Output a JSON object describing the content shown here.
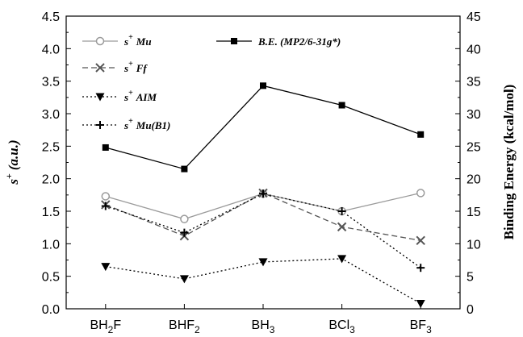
{
  "chart_data": {
    "type": "line",
    "categories": [
      {
        "base": "BH",
        "sub": "2",
        "tail": "F"
      },
      {
        "base": "BHF",
        "sub": "2",
        "tail": ""
      },
      {
        "base": "BH",
        "sub": "3",
        "tail": ""
      },
      {
        "base": "BCl",
        "sub": "3",
        "tail": ""
      },
      {
        "base": "BF",
        "sub": "3",
        "tail": ""
      }
    ],
    "y_left": {
      "label_main": "s",
      "label_sup": "+",
      "label_unit": "(a.u.)",
      "lim": [
        0.0,
        4.5
      ],
      "ticks": [
        "0.0",
        "0.5",
        "1.0",
        "1.5",
        "2.0",
        "2.5",
        "3.0",
        "3.5",
        "4.0",
        "4.5"
      ]
    },
    "y_right": {
      "label": "Binding Energy (kcal/mol)",
      "lim": [
        0,
        45
      ],
      "ticks": [
        "0",
        "5",
        "10",
        "15",
        "20",
        "25",
        "30",
        "35",
        "40",
        "45"
      ]
    },
    "series": [
      {
        "name": "Mu",
        "prefix": "s",
        "sup": "+",
        "axis": "left",
        "marker": "circle-open",
        "line": "solid",
        "color": "#9a9a9a",
        "values": [
          1.73,
          1.38,
          1.77,
          1.5,
          1.78
        ]
      },
      {
        "name": "B.E. (MP2/6-31g*)",
        "prefix": "",
        "sup": "",
        "axis": "right",
        "marker": "square-filled",
        "line": "solid",
        "color": "#000000",
        "values": [
          24.8,
          21.5,
          34.3,
          31.3,
          26.8
        ]
      },
      {
        "name": "Ff",
        "prefix": "s",
        "sup": "+",
        "axis": "left",
        "marker": "x",
        "line": "dashed",
        "color": "#555555",
        "values": [
          1.6,
          1.12,
          1.78,
          1.26,
          1.05
        ]
      },
      {
        "name": "AIM",
        "prefix": "s",
        "sup": "+",
        "axis": "left",
        "marker": "triangle-down-filled",
        "line": "dotted",
        "color": "#000000",
        "values": [
          0.65,
          0.46,
          0.72,
          0.77,
          0.08
        ]
      },
      {
        "name": "Mu(B1)",
        "prefix": "s",
        "sup": "+",
        "axis": "left",
        "marker": "plus",
        "line": "dotted",
        "color": "#000000",
        "values": [
          1.58,
          1.17,
          1.77,
          1.5,
          0.63
        ]
      }
    ],
    "grid": false,
    "legend_position": "top-left"
  }
}
